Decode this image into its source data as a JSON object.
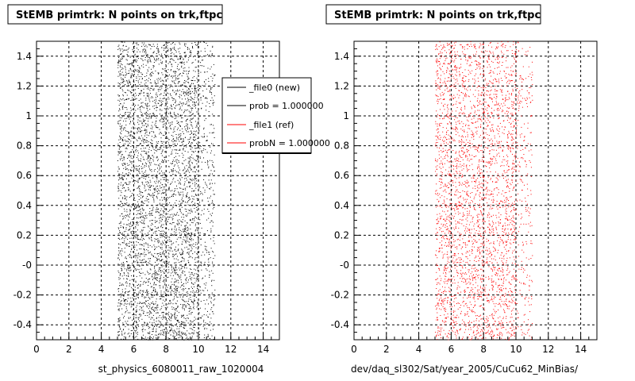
{
  "chart_data": [
    {
      "type": "scatter",
      "title": "StEMB primtrk: N points on trk,ftpc",
      "xlabel": "st_physics_6080011_raw_1020004",
      "ylabel": "",
      "xlim": [
        0,
        15
      ],
      "ylim": [
        -0.5,
        1.5
      ],
      "x_ticks": [
        0,
        2,
        4,
        6,
        8,
        10,
        12,
        14
      ],
      "x_tick_labels": [
        "0",
        "2",
        "4",
        "6",
        "8",
        "10",
        "12",
        "14"
      ],
      "y_ticks": [
        -0.4,
        -0.2,
        0,
        0.2,
        0.4,
        0.6,
        0.8,
        1,
        1.2,
        1.4
      ],
      "y_tick_labels": [
        "-0.4",
        "-0.2",
        "-0",
        "0.2",
        "0.4",
        "0.6",
        "0.8",
        "1",
        "1.2",
        "1.4"
      ],
      "grid": true,
      "point_color": "#000000",
      "x_range_points": [
        5,
        11
      ],
      "legend_position": "top-right",
      "legend": [
        {
          "label": "_file0 (new)",
          "color": "#000000"
        },
        {
          "label": "prob = 1.000000",
          "color": "#000000"
        },
        {
          "label": "_file1 (ref)",
          "color": "#ff0000"
        },
        {
          "label": "probN = 1.000000",
          "color": "#ff0000"
        }
      ]
    },
    {
      "type": "scatter",
      "title": "StEMB primtrk: N points on trk,ftpc",
      "xlabel": "dev/daq_sl302/Sat/year_2005/CuCu62_MinBias/",
      "ylabel": "",
      "xlim": [
        0,
        15
      ],
      "ylim": [
        -0.5,
        1.5
      ],
      "x_ticks": [
        0,
        2,
        4,
        6,
        8,
        10,
        12,
        14
      ],
      "x_tick_labels": [
        "0",
        "2",
        "4",
        "6",
        "8",
        "10",
        "12",
        "14"
      ],
      "y_ticks": [
        -0.4,
        -0.2,
        0,
        0.2,
        0.4,
        0.6,
        0.8,
        1,
        1.2,
        1.4
      ],
      "y_tick_labels": [
        "-0.4",
        "-0.2",
        "-0",
        "0.2",
        "0.4",
        "0.6",
        "0.8",
        "1",
        "1.2",
        "1.4"
      ],
      "grid": true,
      "point_color": "#ff0000",
      "x_range_points": [
        5,
        11
      ]
    }
  ]
}
